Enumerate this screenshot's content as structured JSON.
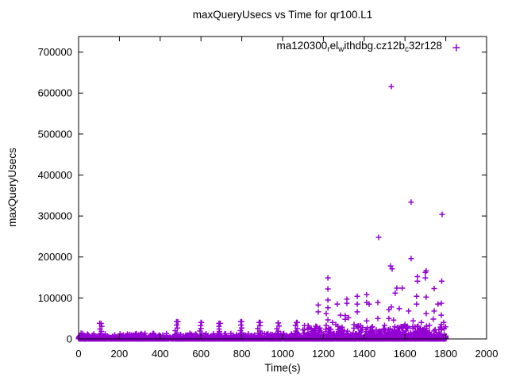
{
  "window": {
    "background": "#ffffff"
  },
  "chart_data": {
    "type": "scatter",
    "title": "maxQueryUsecs vs Time for qr100.L1",
    "xlabel": "Time(s)",
    "ylabel": "maxQueryUsecs",
    "xlim": [
      0,
      2000
    ],
    "ylim": [
      0,
      738000
    ],
    "grid": false,
    "border": true,
    "tick_style": "inward-mirrored",
    "xticks": [
      0,
      200,
      400,
      600,
      800,
      1000,
      1200,
      1400,
      1600,
      1800,
      2000
    ],
    "xtick_labels": [
      "0",
      "200",
      "400",
      "600",
      "800",
      "1000",
      "1200",
      "1400",
      "1600",
      "1800",
      "2000"
    ],
    "yticks": [
      0,
      100000,
      200000,
      300000,
      400000,
      500000,
      600000,
      700000
    ],
    "ytick_labels": [
      "0",
      "100000",
      "200000",
      "300000",
      "400000",
      "500000",
      "600000",
      "700000"
    ],
    "colors": {
      "marker": "#9400d3",
      "text": "#000000",
      "border": "#000000",
      "background": "#ffffff"
    },
    "legend": {
      "position": "top-right-inside",
      "label_plain": "ma120300_rel_withdbg.cz12b_c32r128",
      "label_segments": [
        {
          "text": "ma120300"
        },
        {
          "text": "r",
          "sub": true
        },
        {
          "text": "el"
        },
        {
          "text": "w",
          "sub": true
        },
        {
          "text": "ithdbg.cz12b"
        },
        {
          "text": "c",
          "sub": true
        },
        {
          "text": "32r128"
        }
      ],
      "marker": "plus",
      "marker_color": "#9400d3"
    },
    "series": [
      {
        "name": "ma120300_rel_withdbg.cz12b_c32r128",
        "marker": "plus",
        "color": "#9400d3",
        "outlier_points": [
          [
            1533,
            616000
          ],
          [
            1630,
            334000
          ],
          [
            1782,
            304000
          ],
          [
            1471,
            248000
          ],
          [
            1630,
            196000
          ],
          [
            1529,
            178000
          ],
          [
            1537,
            171000
          ],
          [
            1704,
            166000
          ],
          [
            1700,
            162000
          ],
          [
            1661,
            152000
          ],
          [
            1222,
            149000
          ],
          [
            1700,
            149000
          ],
          [
            1780,
            141000
          ],
          [
            1661,
            141000
          ],
          [
            1587,
            124000
          ],
          [
            1743,
            123000
          ],
          [
            1560,
            124000
          ],
          [
            1222,
            122000
          ],
          [
            1552,
            112000
          ],
          [
            1412,
            108000
          ],
          [
            1366,
            104000
          ],
          [
            1657,
            104000
          ],
          [
            1704,
            102000
          ],
          [
            1315,
            97000
          ],
          [
            1222,
            95000
          ],
          [
            1412,
            89000
          ],
          [
            1467,
            89000
          ],
          [
            1315,
            87000
          ],
          [
            1366,
            85000
          ],
          [
            1424,
            85000
          ],
          [
            1657,
            85000
          ],
          [
            1762,
            85000
          ],
          [
            1268,
            85000
          ],
          [
            1175,
            83000
          ],
          [
            1778,
            87000
          ],
          [
            1533,
            78000
          ],
          [
            1222,
            76000
          ],
          [
            1572,
            74000
          ],
          [
            1521,
            71500
          ],
          [
            1618,
            68000
          ],
          [
            1743,
            68000
          ],
          [
            1366,
            66000
          ],
          [
            1175,
            66000
          ],
          [
            1214,
            62000
          ],
          [
            1704,
            62000
          ],
          [
            1284,
            58000
          ],
          [
            1778,
            58000
          ],
          [
            1307,
            57000
          ],
          [
            1323,
            52000
          ],
          [
            1467,
            50000
          ],
          [
            1521,
            50000
          ],
          [
            1739,
            48500
          ],
          [
            1222,
            46500
          ],
          [
            1544,
            46000
          ],
          [
            1307,
            48000
          ],
          [
            1412,
            44000
          ],
          [
            1640,
            44000
          ],
          [
            1680,
            40000
          ],
          [
            1790,
            40000
          ],
          [
            1245,
            40000
          ],
          [
            1366,
            31000
          ],
          [
            1261,
            35000
          ],
          [
            1163,
            31000
          ],
          [
            1214,
            33000
          ],
          [
            1580,
            30000
          ],
          [
            1778,
            35000
          ],
          [
            1774,
            29000
          ],
          [
            1640,
            26000
          ],
          [
            1690,
            22000
          ],
          [
            1140,
            26000
          ],
          [
            1100,
            22000
          ],
          [
            1350,
            35000
          ],
          [
            1440,
            30000
          ],
          [
            1500,
            33000
          ],
          [
            1600,
            35000
          ],
          [
            1660,
            30000
          ],
          [
            1720,
            33000
          ]
        ],
        "spike_clusters": {
          "points_each": 9,
          "x_jitter": 14,
          "clusters": [
            [
              110,
              38000
            ],
            [
              480,
              42000
            ],
            [
              600,
              40000
            ],
            [
              688,
              38000
            ],
            [
              795,
              42000
            ],
            [
              885,
              40000
            ],
            [
              978,
              39000
            ],
            [
              1068,
              40000
            ],
            [
              1163,
              30000
            ]
          ]
        },
        "dense_bands": [
          {
            "x": [
              0,
              1802
            ],
            "count": 2800,
            "y_max": 4000,
            "pow": 2.0
          },
          {
            "x": [
              0,
              1802
            ],
            "count": 1000,
            "y_max": 14000,
            "pow": 3.0
          },
          {
            "x": [
              1100,
              1802
            ],
            "count": 300,
            "y_max": 34000,
            "pow": 2.5
          },
          {
            "x": [
              1430,
              1802
            ],
            "count": 120,
            "y_max": 30000,
            "pow": 2.0
          }
        ],
        "rng_seed": 1337
      }
    ]
  }
}
